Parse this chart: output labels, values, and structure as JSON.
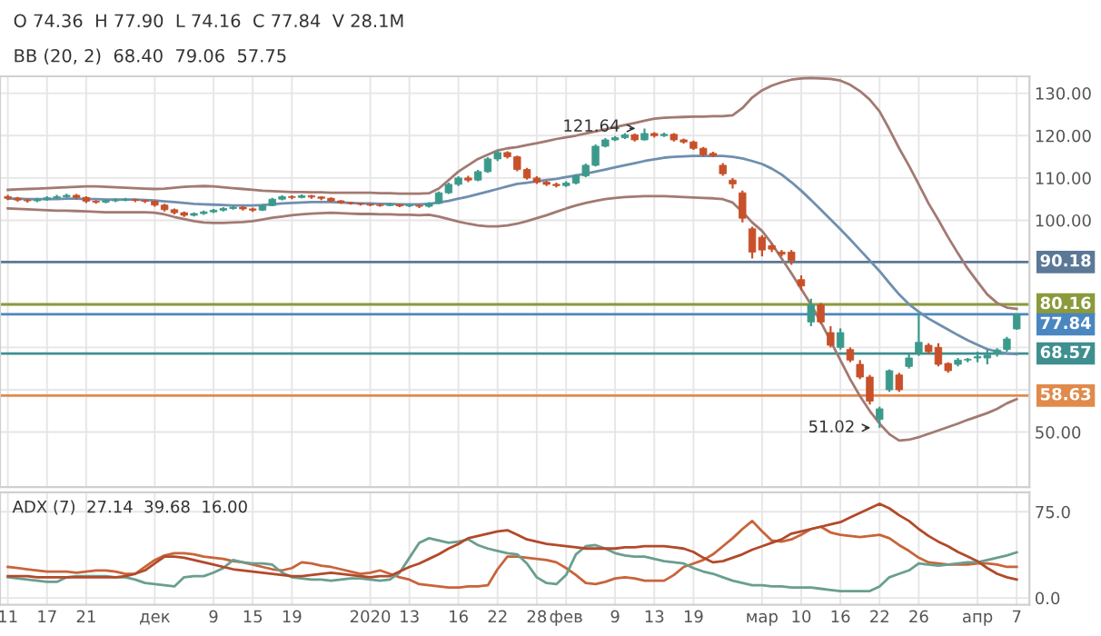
{
  "chart_data": [
    {
      "type": "candlestick",
      "categories": [
        null,
        null,
        null,
        null,
        null,
        null,
        null,
        null,
        null,
        null,
        null,
        null,
        null,
        null,
        null,
        null,
        null,
        null,
        null,
        null,
        null,
        null,
        null,
        null,
        null,
        null,
        null,
        null,
        null,
        null,
        null,
        null,
        null,
        null,
        null,
        null,
        null,
        null,
        null,
        null,
        null,
        null,
        null,
        null,
        null,
        null,
        null,
        null,
        null,
        null,
        null,
        null,
        null,
        null,
        null,
        null,
        null,
        null,
        null,
        null,
        null,
        null,
        null,
        null,
        null,
        null,
        null,
        null,
        null,
        null,
        null,
        null,
        null,
        null,
        null,
        null,
        null,
        null,
        null,
        null,
        null,
        null,
        null,
        null,
        null,
        null,
        null,
        null,
        null,
        null,
        null,
        null,
        null,
        null,
        null,
        null,
        null,
        null,
        null,
        null,
        null,
        null,
        null,
        null
      ],
      "ohlc": [
        [
          105.6,
          106.0,
          104.8,
          105.2
        ],
        [
          105.2,
          105.5,
          104.4,
          104.8
        ],
        [
          104.8,
          105.1,
          104.2,
          104.6
        ],
        [
          104.6,
          105.3,
          104.3,
          104.9
        ],
        [
          104.9,
          105.7,
          104.6,
          105.3
        ],
        [
          105.3,
          106.0,
          105.0,
          105.6
        ],
        [
          105.6,
          106.3,
          105.3,
          105.9
        ],
        [
          105.9,
          106.2,
          105.0,
          105.4
        ],
        [
          105.4,
          105.7,
          104.1,
          104.5
        ],
        [
          104.5,
          104.8,
          103.9,
          104.3
        ],
        [
          104.3,
          105.0,
          104.0,
          104.6
        ],
        [
          104.6,
          105.2,
          104.3,
          104.8
        ],
        [
          104.8,
          105.3,
          104.5,
          104.9
        ],
        [
          104.9,
          105.1,
          104.3,
          104.7
        ],
        [
          104.7,
          104.9,
          104.1,
          104.5
        ],
        [
          104.5,
          104.7,
          103.2,
          103.6
        ],
        [
          103.6,
          103.9,
          102.1,
          102.5
        ],
        [
          102.5,
          102.8,
          101.4,
          101.8
        ],
        [
          101.8,
          102.1,
          100.8,
          101.2
        ],
        [
          101.2,
          101.9,
          100.9,
          101.6
        ],
        [
          101.6,
          102.3,
          101.3,
          102.0
        ],
        [
          102.0,
          102.7,
          101.7,
          102.4
        ],
        [
          102.4,
          103.1,
          102.1,
          102.8
        ],
        [
          102.8,
          103.4,
          102.5,
          103.1
        ],
        [
          103.1,
          103.3,
          102.3,
          102.7
        ],
        [
          102.7,
          103.0,
          102.0,
          102.4
        ],
        [
          102.4,
          103.8,
          102.2,
          103.5
        ],
        [
          103.5,
          105.3,
          103.3,
          105.0
        ],
        [
          105.0,
          105.9,
          104.7,
          105.6
        ],
        [
          105.6,
          105.9,
          105.0,
          105.4
        ],
        [
          105.4,
          106.1,
          105.2,
          105.8
        ],
        [
          105.8,
          106.0,
          105.1,
          105.5
        ],
        [
          105.5,
          105.7,
          104.8,
          105.2
        ],
        [
          105.2,
          105.4,
          104.3,
          104.6
        ],
        [
          104.6,
          104.8,
          103.9,
          104.2
        ],
        [
          104.2,
          104.4,
          103.7,
          104.0
        ],
        [
          104.0,
          104.2,
          103.5,
          103.8
        ],
        [
          103.8,
          104.0,
          103.3,
          103.6
        ],
        [
          103.6,
          103.9,
          103.2,
          103.5
        ],
        [
          103.5,
          104.0,
          103.3,
          103.7
        ],
        [
          103.7,
          103.9,
          103.1,
          103.4
        ],
        [
          103.4,
          103.8,
          103.1,
          103.5
        ],
        [
          103.5,
          103.7,
          102.9,
          103.3
        ],
        [
          103.3,
          104.3,
          103.0,
          104.0
        ],
        [
          104.0,
          106.8,
          103.8,
          106.5
        ],
        [
          106.5,
          108.9,
          106.2,
          108.5
        ],
        [
          108.5,
          110.4,
          108.1,
          110.0
        ],
        [
          110.0,
          110.5,
          109.0,
          109.5
        ],
        [
          109.5,
          111.9,
          109.2,
          111.5
        ],
        [
          111.5,
          114.9,
          111.2,
          114.5
        ],
        [
          114.5,
          116.5,
          114.0,
          116.0
        ],
        [
          116.0,
          116.3,
          114.6,
          115.0
        ],
        [
          115.0,
          115.3,
          111.6,
          112.0
        ],
        [
          112.0,
          112.4,
          109.6,
          110.0
        ],
        [
          110.0,
          110.4,
          108.6,
          109.0
        ],
        [
          109.0,
          109.4,
          108.1,
          108.5
        ],
        [
          108.5,
          108.9,
          107.8,
          108.2
        ],
        [
          108.2,
          109.2,
          107.9,
          108.8
        ],
        [
          108.8,
          110.9,
          108.5,
          110.5
        ],
        [
          110.5,
          113.4,
          110.2,
          113.0
        ],
        [
          113.0,
          117.9,
          112.7,
          117.5
        ],
        [
          117.5,
          119.4,
          117.2,
          119.0
        ],
        [
          119.0,
          119.9,
          118.7,
          119.5
        ],
        [
          119.5,
          120.6,
          119.2,
          120.2
        ],
        [
          120.2,
          120.5,
          118.6,
          119.0
        ],
        [
          119.0,
          121.64,
          118.8,
          120.5
        ],
        [
          120.5,
          120.8,
          119.6,
          120.0
        ],
        [
          120.0,
          120.7,
          119.7,
          120.3
        ],
        [
          120.3,
          120.6,
          118.6,
          119.0
        ],
        [
          119.0,
          119.3,
          118.1,
          118.5
        ],
        [
          118.5,
          118.8,
          116.6,
          117.0
        ],
        [
          117.0,
          117.3,
          115.1,
          115.5
        ],
        [
          115.8,
          116.2,
          114.9,
          115.3
        ],
        [
          113.0,
          113.5,
          110.5,
          111.0
        ],
        [
          109.5,
          110.0,
          107.5,
          108.6
        ],
        [
          106.5,
          107.0,
          99.5,
          100.5
        ],
        [
          98.0,
          98.5,
          91.0,
          92.5
        ],
        [
          96.0,
          96.5,
          91.5,
          93.0
        ],
        [
          94.0,
          94.5,
          92.5,
          93.2
        ],
        [
          92.5,
          93.0,
          91.5,
          92.0
        ],
        [
          92.5,
          93.0,
          89.5,
          90.5
        ],
        [
          86.0,
          87.0,
          83.5,
          84.5
        ],
        [
          76.0,
          81.5,
          75.0,
          80.0
        ],
        [
          80.0,
          80.5,
          75.5,
          76.0
        ],
        [
          73.5,
          75.0,
          70.0,
          70.5
        ],
        [
          70.0,
          74.5,
          69.5,
          73.5
        ],
        [
          69.5,
          70.0,
          66.5,
          67.0
        ],
        [
          66.0,
          67.0,
          62.5,
          63.0
        ],
        [
          63.0,
          63.5,
          56.5,
          57.3
        ],
        [
          53.0,
          56.0,
          51.02,
          55.5
        ],
        [
          60.0,
          64.8,
          59.5,
          64.5
        ],
        [
          63.5,
          64.0,
          59.5,
          60.0
        ],
        [
          65.5,
          68.5,
          65.0,
          67.5
        ],
        [
          68.8,
          78.0,
          68.0,
          71.2
        ],
        [
          70.5,
          71.0,
          68.5,
          69.0
        ],
        [
          70.0,
          71.0,
          65.5,
          66.0
        ],
        [
          66.2,
          66.5,
          64.0,
          64.5
        ],
        [
          66.0,
          67.5,
          65.5,
          67.0
        ],
        [
          67.0,
          67.5,
          66.5,
          67.2
        ],
        [
          67.5,
          69.0,
          66.5,
          67.8
        ],
        [
          67.5,
          69.5,
          66.0,
          68.2
        ],
        [
          68.5,
          69.8,
          67.8,
          69.4
        ],
        [
          69.5,
          72.5,
          69.0,
          72.0
        ],
        [
          74.36,
          77.9,
          74.16,
          77.84
        ]
      ],
      "series": [
        {
          "type": "line",
          "color": "#a27a72",
          "values": [
            107.2,
            107.3,
            107.4,
            107.5,
            107.6,
            107.7,
            107.8,
            107.9,
            108.0,
            108.0,
            107.9,
            107.8,
            107.7,
            107.6,
            107.5,
            107.4,
            107.5,
            107.7,
            107.9,
            108.0,
            108.1,
            108.0,
            107.8,
            107.6,
            107.4,
            107.2,
            107.0,
            106.9,
            106.8,
            106.7,
            106.7,
            106.6,
            106.6,
            106.5,
            106.5,
            106.5,
            106.5,
            106.5,
            106.4,
            106.4,
            106.3,
            106.3,
            106.3,
            106.4,
            107.5,
            109.5,
            111.5,
            113.0,
            114.5,
            115.5,
            116.5,
            117.0,
            117.3,
            117.8,
            118.2,
            118.7,
            119.2,
            119.6,
            120.0,
            120.5,
            121.0,
            121.5,
            122.0,
            122.5,
            123.0,
            123.5,
            124.0,
            124.2,
            124.3,
            124.4,
            124.5,
            124.5,
            124.6,
            124.6,
            124.8,
            126.5,
            129.0,
            130.7,
            131.8,
            132.6,
            133.2,
            133.5,
            133.6,
            133.5,
            133.4,
            133.0,
            132.0,
            130.5,
            128.5,
            125.7,
            121.5,
            117.0,
            112.9,
            108.5,
            104.0,
            100.1,
            96.0,
            92.2,
            88.6,
            85.5,
            82.5,
            80.5,
            79.4,
            79.1
          ]
        },
        {
          "type": "line",
          "color": "#6f8fae",
          "values": [
            105.1,
            105.1,
            105.0,
            105.0,
            105.0,
            105.0,
            105.1,
            105.1,
            105.0,
            105.0,
            104.9,
            104.9,
            104.9,
            104.9,
            104.8,
            104.7,
            104.5,
            104.3,
            104.1,
            103.9,
            103.8,
            103.7,
            103.6,
            103.5,
            103.5,
            103.5,
            103.6,
            103.8,
            104.0,
            104.1,
            104.2,
            104.3,
            104.3,
            104.3,
            104.2,
            104.1,
            104.0,
            104.0,
            103.9,
            103.9,
            103.8,
            103.8,
            103.8,
            103.9,
            104.2,
            104.6,
            105.1,
            105.6,
            106.2,
            106.8,
            107.4,
            108.0,
            108.6,
            108.9,
            109.2,
            109.5,
            109.8,
            110.2,
            110.6,
            111.0,
            111.5,
            112.0,
            112.5,
            113.0,
            113.5,
            114.0,
            114.4,
            114.8,
            115.0,
            115.1,
            115.2,
            115.2,
            115.2,
            115.2,
            115.0,
            114.6,
            114.0,
            113.3,
            112.2,
            110.8,
            109.0,
            107.0,
            104.8,
            102.5,
            100.2,
            97.9,
            95.5,
            93.0,
            90.5,
            88.0,
            85.2,
            82.5,
            80.2,
            78.4,
            76.8,
            75.5,
            74.2,
            72.9,
            71.7,
            70.6,
            69.6,
            69.0,
            68.6,
            68.4
          ]
        },
        {
          "type": "line",
          "color": "#a27a72",
          "values": [
            102.8,
            102.7,
            102.6,
            102.5,
            102.4,
            102.3,
            102.3,
            102.2,
            102.1,
            102.0,
            101.9,
            101.9,
            101.9,
            101.9,
            101.9,
            101.8,
            101.4,
            100.8,
            100.3,
            99.8,
            99.5,
            99.4,
            99.4,
            99.5,
            99.6,
            99.8,
            100.2,
            100.6,
            100.9,
            101.2,
            101.4,
            101.6,
            101.7,
            101.8,
            101.7,
            101.6,
            101.5,
            101.5,
            101.4,
            101.4,
            101.3,
            101.3,
            101.2,
            101.3,
            100.9,
            100.3,
            99.7,
            99.2,
            98.8,
            98.6,
            98.6,
            98.8,
            99.2,
            99.8,
            100.5,
            101.2,
            102.0,
            102.8,
            103.5,
            104.1,
            104.6,
            105.0,
            105.3,
            105.5,
            105.6,
            105.7,
            105.7,
            105.7,
            105.6,
            105.5,
            105.4,
            105.3,
            105.2,
            105.0,
            104.2,
            102.0,
            99.5,
            97.5,
            94.5,
            91.0,
            87.5,
            83.8,
            80.1,
            76.0,
            71.5,
            67.0,
            62.5,
            58.5,
            55.0,
            52.0,
            49.5,
            48.0,
            48.2,
            48.8,
            49.6,
            50.4,
            51.2,
            52.0,
            52.9,
            53.7,
            54.5,
            55.5,
            56.8,
            57.8
          ]
        }
      ],
      "ylim": [
        37,
        134
      ],
      "yticks": [
        {
          "value": 50,
          "label": "50.00"
        },
        {
          "value": 60,
          "label": null
        },
        {
          "value": 70,
          "label": null
        },
        {
          "value": 80,
          "label": null
        },
        {
          "value": 90,
          "label": null
        },
        {
          "value": 100,
          "label": "100.00"
        },
        {
          "value": 110,
          "label": "110.00"
        },
        {
          "value": 120,
          "label": "120.00"
        },
        {
          "value": 130,
          "label": "130.00"
        }
      ],
      "ref_lines": [
        {
          "axis": "y",
          "value": 90.18,
          "label": "90.18",
          "color": "#5b7896"
        },
        {
          "axis": "y",
          "value": 80.16,
          "label": "80.16",
          "color": "#8a9a3c"
        },
        {
          "axis": "y",
          "value": 77.84,
          "label": "77.84",
          "color": "#4a86c0"
        },
        {
          "axis": "y",
          "value": 68.57,
          "label": "68.57",
          "color": "#3f8f90"
        },
        {
          "axis": "y",
          "value": 58.63,
          "label": "58.63",
          "color": "#e08a4c"
        }
      ],
      "annotations": [
        {
          "text": "121.64",
          "y": 121.64
        },
        "51.02",
        "O 74.36  H 77.90  L 74.16  C 77.84  V 28.1M",
        "BB (20, 2)  68.40  79.06  57.75"
      ],
      "grid": true,
      "tick_labels": "y"
    },
    {
      "type": "line",
      "categories": [
        "11",
        null,
        null,
        null,
        "17",
        null,
        null,
        null,
        "21",
        null,
        null,
        null,
        null,
        null,
        null,
        "дек",
        null,
        null,
        null,
        null,
        null,
        "9",
        null,
        null,
        null,
        "15",
        null,
        null,
        null,
        "19",
        null,
        null,
        null,
        null,
        null,
        null,
        null,
        "2020",
        null,
        null,
        null,
        "13",
        null,
        null,
        null,
        null,
        "16",
        null,
        null,
        null,
        "22",
        null,
        null,
        null,
        "28",
        null,
        null,
        "фев",
        null,
        null,
        null,
        null,
        "9",
        null,
        null,
        null,
        "13",
        null,
        null,
        null,
        "19",
        null,
        null,
        null,
        null,
        null,
        null,
        "мар",
        null,
        null,
        null,
        "10",
        null,
        null,
        null,
        "16",
        null,
        null,
        null,
        "22",
        null,
        null,
        null,
        "26",
        null,
        null,
        null,
        null,
        null,
        "апр",
        null,
        null,
        null,
        "7"
      ],
      "series": [
        {
          "color": "#c8643b",
          "values": [
            27,
            26,
            25,
            24,
            23,
            23,
            23,
            22,
            23,
            24,
            24,
            23,
            21,
            21,
            27,
            33,
            37,
            39,
            39,
            38,
            36,
            35,
            34,
            32,
            31,
            29,
            27,
            25,
            24,
            26,
            31,
            30,
            28,
            27,
            25,
            23,
            21,
            22,
            24,
            21,
            18,
            16,
            12,
            11,
            10,
            9,
            9,
            10,
            10,
            11,
            25,
            36,
            36,
            35,
            34,
            33,
            31,
            26,
            20,
            13,
            12,
            14,
            17,
            18,
            17,
            15,
            15,
            15,
            20,
            27,
            30,
            33,
            38,
            45,
            52,
            60,
            67,
            58,
            50,
            49,
            51,
            55,
            60,
            62,
            57,
            55,
            54,
            53,
            54,
            55,
            52,
            46,
            41,
            35,
            31,
            30,
            29,
            29,
            29,
            30,
            30,
            29,
            27,
            27.1
          ]
        },
        {
          "color": "#6a9e90",
          "values": [
            18,
            17,
            16,
            15,
            14,
            14,
            18,
            19,
            19,
            19,
            19,
            18,
            18,
            16,
            13,
            12,
            11,
            10,
            18,
            19,
            19,
            22,
            26,
            33,
            31,
            30,
            30,
            29,
            22,
            18,
            17,
            16,
            16,
            15,
            16,
            17,
            17,
            16,
            15,
            16,
            22,
            35,
            48,
            52,
            50,
            48,
            49,
            51,
            46,
            43,
            41,
            39,
            38,
            30,
            18,
            13,
            12,
            20,
            38,
            45,
            46,
            43,
            39,
            37,
            36,
            36,
            34,
            32,
            31,
            30,
            26,
            23,
            21,
            18,
            15,
            13,
            11,
            11,
            10,
            10,
            9,
            9,
            9,
            8,
            7,
            6,
            6,
            6,
            6,
            10,
            18,
            21,
            24,
            30,
            29,
            28,
            29,
            30,
            31,
            31,
            33,
            35,
            37,
            39.7
          ]
        },
        {
          "color": "#b24a2a",
          "values": [
            19,
            19,
            19,
            18,
            18,
            18,
            18,
            18,
            18,
            18,
            18,
            18,
            19,
            21,
            24,
            30,
            36,
            36,
            35,
            33,
            31,
            29,
            27,
            25,
            24,
            23,
            22,
            21,
            20,
            19,
            19,
            20,
            21,
            22,
            21,
            20,
            19,
            18,
            19,
            19,
            23,
            27,
            30,
            34,
            38,
            43,
            47,
            52,
            54,
            56,
            58,
            59,
            55,
            51,
            49,
            47,
            46,
            45,
            44,
            43,
            43,
            43,
            43,
            44,
            44,
            45,
            45,
            45,
            44,
            43,
            40,
            35,
            31,
            32,
            35,
            38,
            42,
            45,
            48,
            51,
            56,
            58,
            60,
            62,
            64,
            66,
            70,
            74,
            78,
            82,
            78,
            72,
            67,
            60,
            54,
            49,
            45,
            40,
            36,
            32,
            26,
            21,
            18,
            16.0
          ]
        }
      ],
      "ylim": [
        -6,
        92
      ],
      "yticks": [
        {
          "value": 0,
          "label": "0.0"
        },
        {
          "value": 75,
          "label": "75.0"
        }
      ],
      "annotations": [
        "ADX (7)  27.14  39.68  16.00"
      ],
      "grid": true
    }
  ]
}
